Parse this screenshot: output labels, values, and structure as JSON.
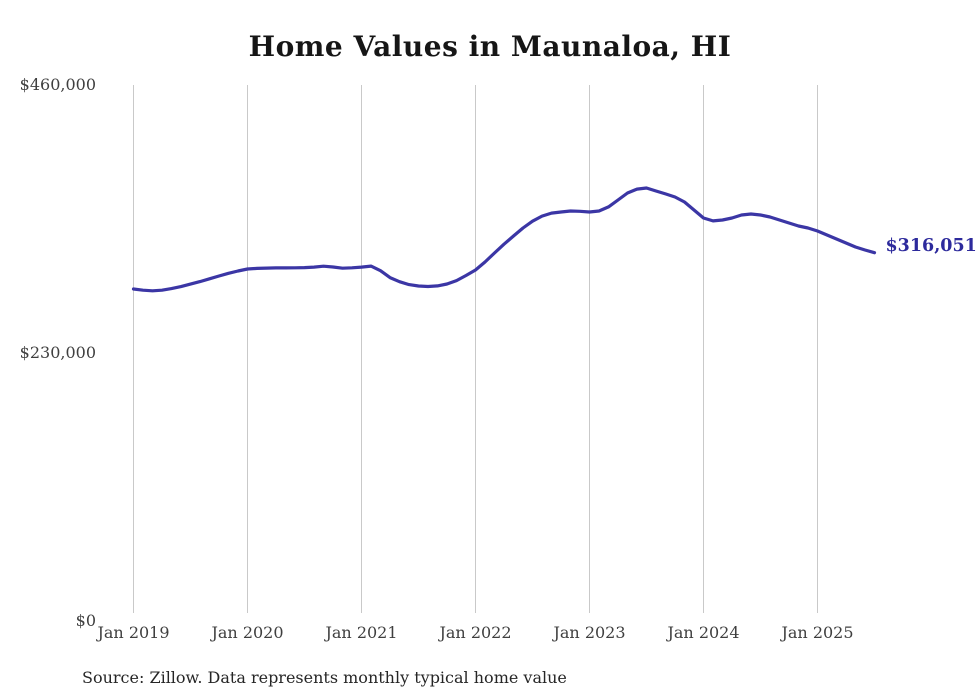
{
  "chart_data": {
    "type": "line",
    "title": "Home Values in Maunaloa, HI",
    "source_note": "Source: Zillow. Data represents monthly typical home value",
    "end_label": "$316,051",
    "end_value": 316051,
    "line_color": "#3b36a5",
    "end_label_color": "#2d2a9c",
    "gridline_color": "#c9c9c9",
    "grid": "vertical-only",
    "legend": "none",
    "y_axis": {
      "min": 0,
      "max": 460000,
      "ticks": [
        {
          "label": "$460,000",
          "value": 460000
        },
        {
          "label": "$230,000",
          "value": 230000
        },
        {
          "label": "$0",
          "value": 0
        }
      ]
    },
    "x_axis": {
      "tick_labels": [
        "Jan 2019",
        "Jan 2020",
        "Jan 2021",
        "Jan 2022",
        "Jan 2023",
        "Jan 2024",
        "Jan 2025"
      ],
      "start": "2019-01",
      "end": "2025-07",
      "interval": "monthly"
    },
    "series": [
      {
        "name": "Typical home value",
        "start": "2019-01",
        "interval": "monthly",
        "values": [
          284900,
          283900,
          283400,
          283900,
          285300,
          287000,
          289100,
          291300,
          293700,
          296100,
          298400,
          300400,
          302100,
          302600,
          302900,
          303000,
          303000,
          303100,
          303300,
          303700,
          304500,
          303800,
          302800,
          303100,
          303700,
          304600,
          300600,
          294700,
          291200,
          288700,
          287500,
          287100,
          287600,
          289200,
          292100,
          296500,
          301200,
          308100,
          315800,
          323400,
          330400,
          337300,
          343100,
          347500,
          350100,
          351000,
          351900,
          351600,
          351000,
          351900,
          355400,
          361300,
          367300,
          370700,
          371600,
          369000,
          366500,
          363900,
          359600,
          352700,
          345900,
          343400,
          344100,
          345900,
          348400,
          349300,
          348400,
          346700,
          344100,
          341600,
          339000,
          337300,
          334700,
          331300,
          327800,
          324400,
          321000,
          318400,
          316051
        ]
      }
    ]
  }
}
